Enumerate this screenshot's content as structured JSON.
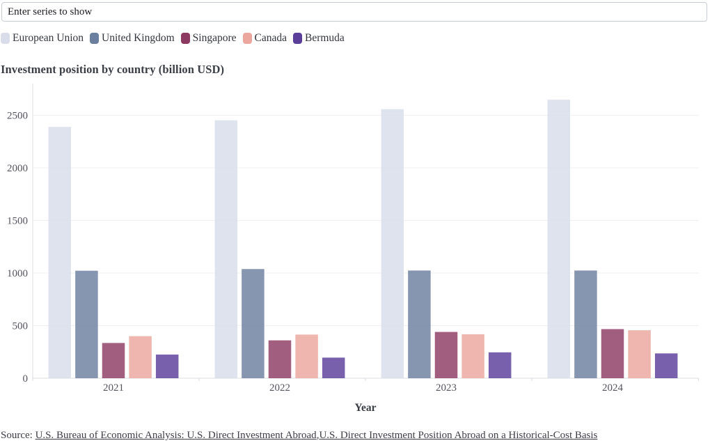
{
  "search": {
    "placeholder": "Enter series to show"
  },
  "title_block": {
    "title": "Investment position by country (billion USD)"
  },
  "chart_data": {
    "type": "bar",
    "title": "Investment position by country (billion USD)",
    "categories": [
      "2021",
      "2022",
      "2023",
      "2024"
    ],
    "series": [
      {
        "name": "European Union",
        "color": "#d8dde9",
        "values": [
          2390,
          2452,
          2558,
          2648
        ]
      },
      {
        "name": "United Kingdom",
        "color": "#6b7f9f",
        "values": [
          1022,
          1038,
          1024,
          1024
        ]
      },
      {
        "name": "Singapore",
        "color": "#8c3a62",
        "values": [
          335,
          360,
          440,
          467
        ]
      },
      {
        "name": "Canada",
        "color": "#eba69d",
        "values": [
          400,
          415,
          418,
          456
        ]
      },
      {
        "name": "Bermuda",
        "color": "#5b3d9a",
        "values": [
          225,
          196,
          246,
          236
        ]
      }
    ],
    "xlabel": "Year",
    "ylabel": "",
    "ylim": [
      0,
      2800
    ],
    "yticks": [
      0,
      500,
      1000,
      1500,
      2000,
      2500
    ],
    "grid": true,
    "legend_position": "top",
    "bar_opacity": 0.82
  },
  "source": {
    "prefix": "Source: ",
    "link1": "U.S. Bureau of Economic Analysis: U.S. Direct Investment Abroad",
    "separator": ",",
    "link2": "U.S. Direct Investment Position Abroad on a Historical-Cost Basis"
  }
}
